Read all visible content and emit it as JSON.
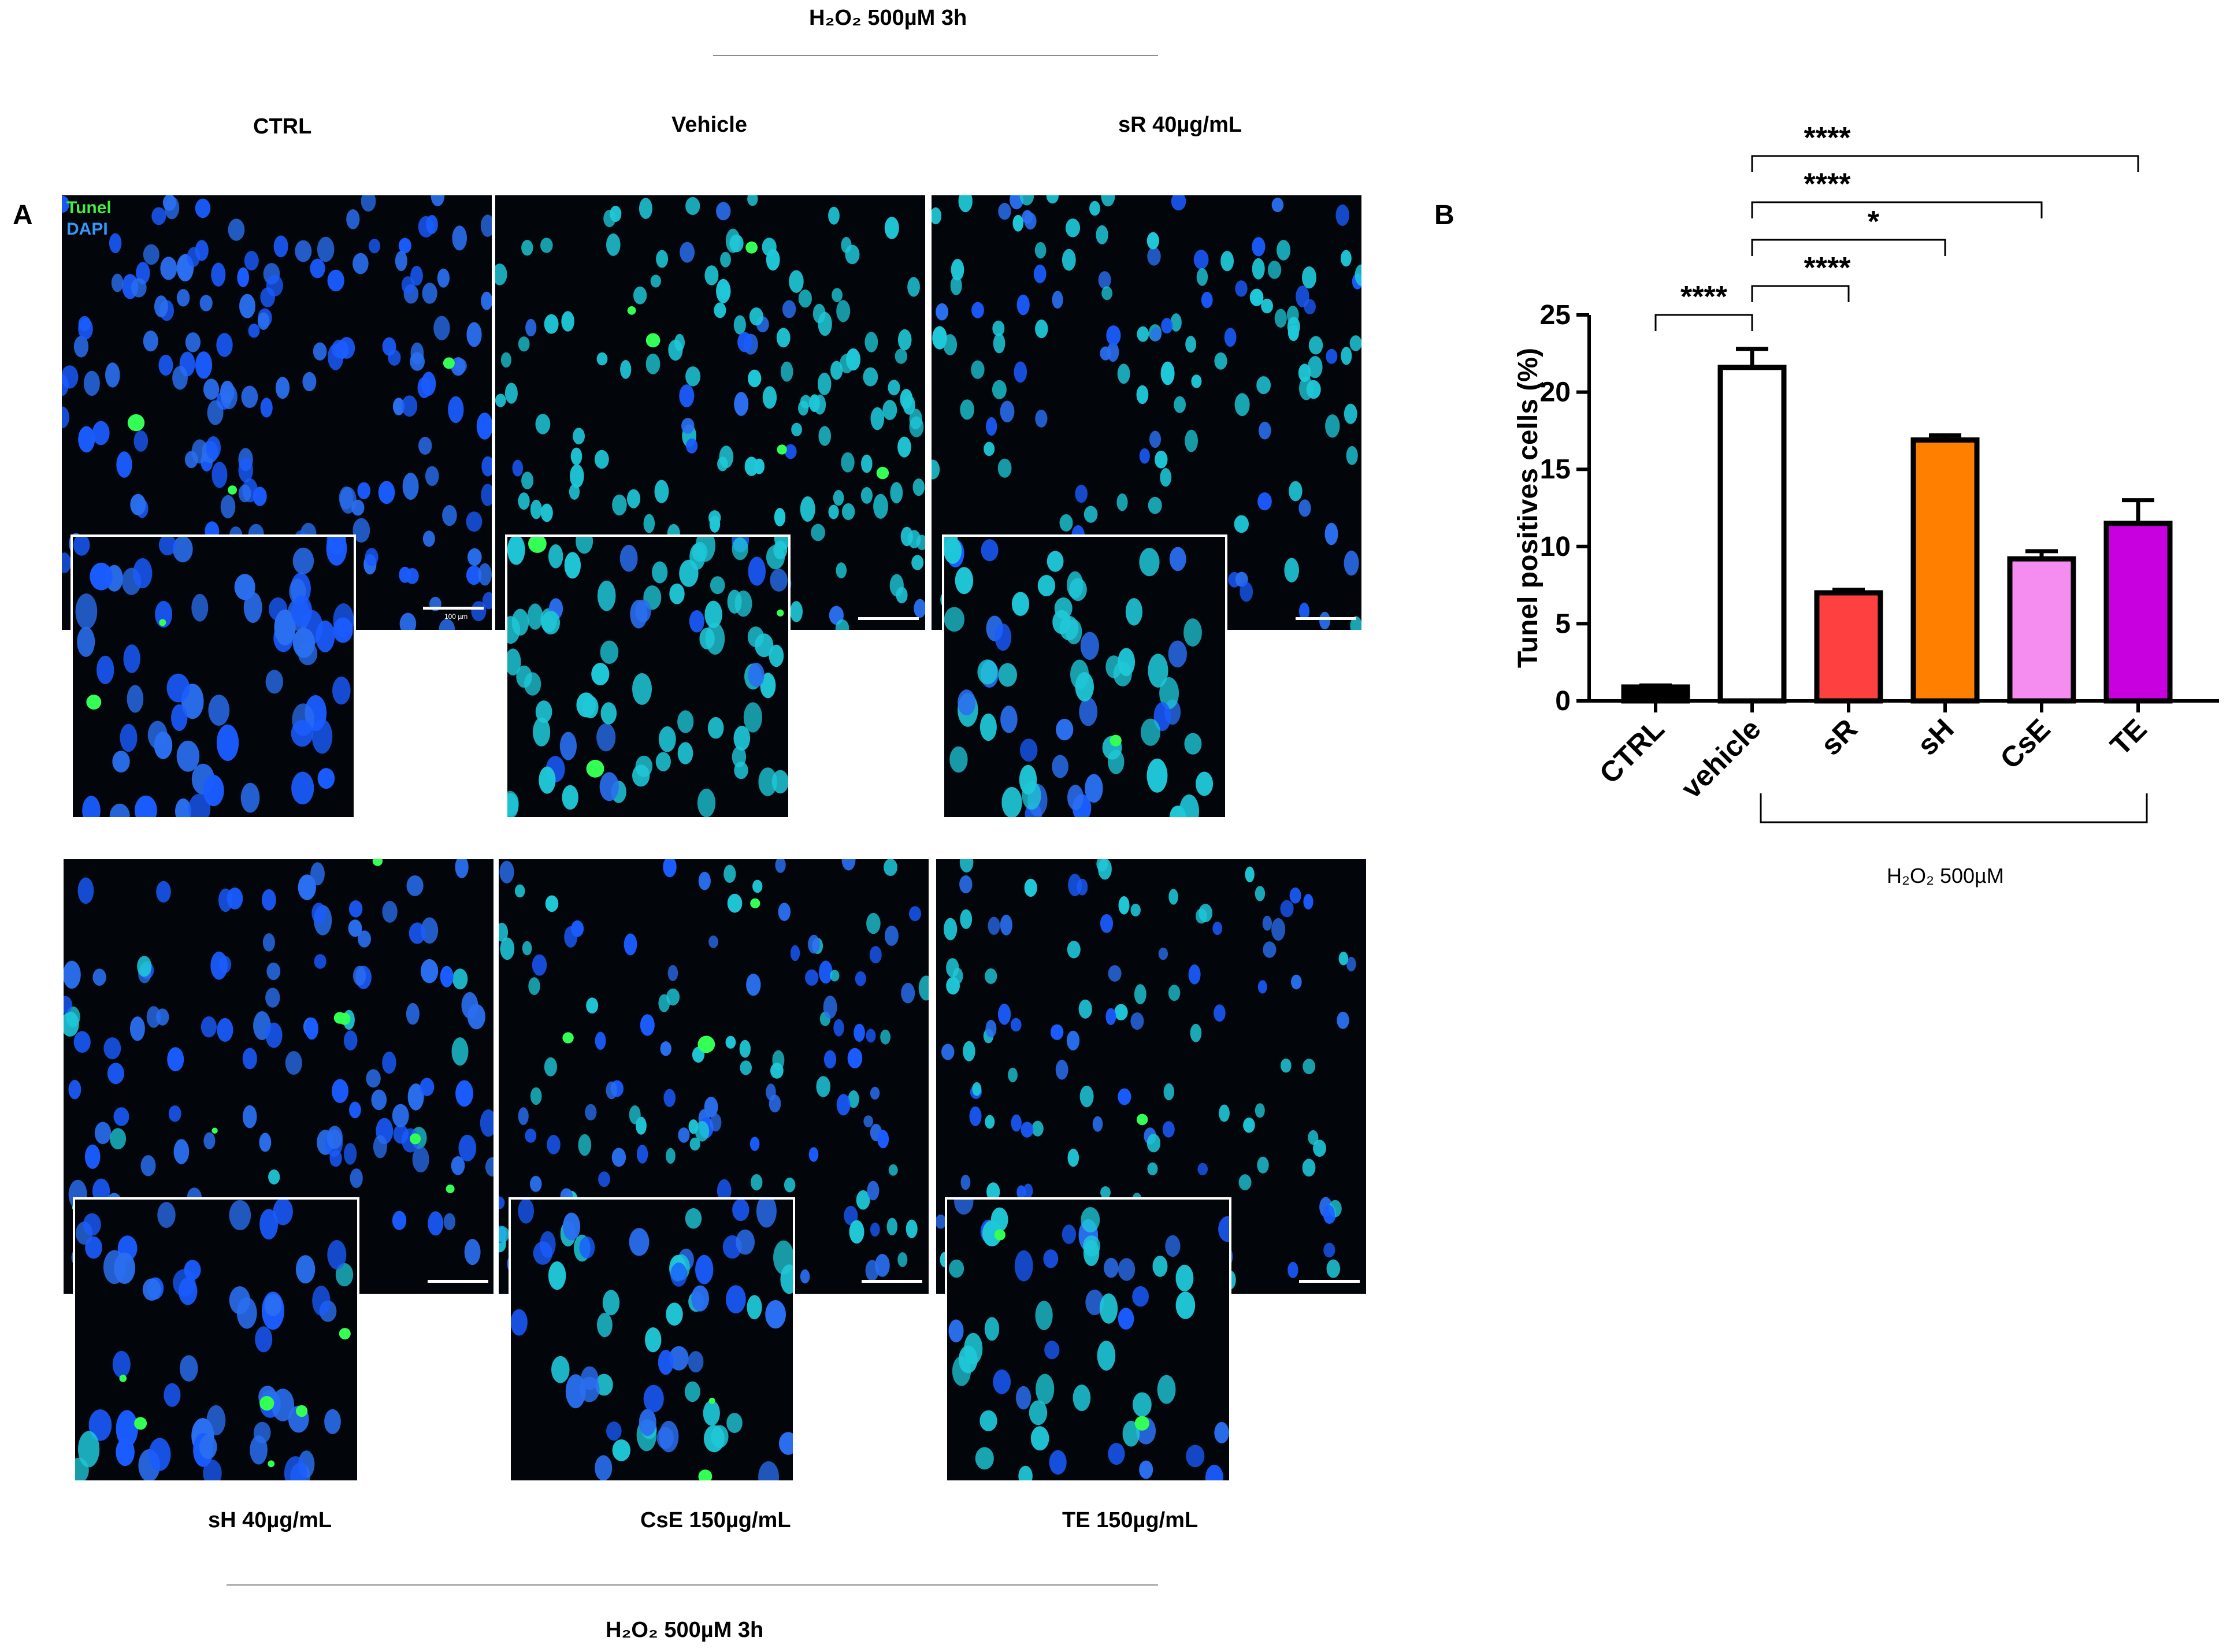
{
  "panel_a": {
    "letter": "A",
    "top_condition": "H₂O₂ 500µM 3h",
    "bottom_condition": "H₂O₂ 500µM 3h",
    "legend_tunel": "Tunel",
    "legend_dapi": "DAPI",
    "scale_label": "100 µm",
    "top_labels": [
      "CTRL",
      "Vehicle",
      "sR 40µg/mL"
    ],
    "bottom_labels": [
      "sH 40µg/mL",
      "CsE 150µg/mL",
      "TE 150µg/mL"
    ]
  },
  "panel_b": {
    "letter": "B",
    "group_label": "H₂O₂ 500µM"
  },
  "colors": {
    "ctrl": "#000000",
    "vehicle": "#ffffff",
    "sR": "#ff4040",
    "sH": "#ff8000",
    "CsE": "#f58cf0",
    "TE": "#c800e0"
  },
  "chart_data": {
    "type": "bar",
    "categories": [
      "CTRL",
      "vehicle",
      "sR",
      "sH",
      "CsE",
      "TE"
    ],
    "values": [
      0.9,
      21.6,
      7.0,
      16.9,
      9.2,
      11.5
    ],
    "errors": [
      0.1,
      1.2,
      0.2,
      0.3,
      0.5,
      1.5
    ],
    "ylabel": "Tunel positives cells (%)",
    "ylim": [
      0,
      25
    ],
    "yticks": [
      0,
      5,
      10,
      15,
      20,
      25
    ],
    "significance": [
      {
        "from": "CTRL",
        "to": "vehicle",
        "label": "****"
      },
      {
        "from": "vehicle",
        "to": "sR",
        "label": "****"
      },
      {
        "from": "vehicle",
        "to": "sH",
        "label": "*"
      },
      {
        "from": "vehicle",
        "to": "CsE",
        "label": "****"
      },
      {
        "from": "vehicle",
        "to": "TE",
        "label": "****"
      }
    ]
  }
}
